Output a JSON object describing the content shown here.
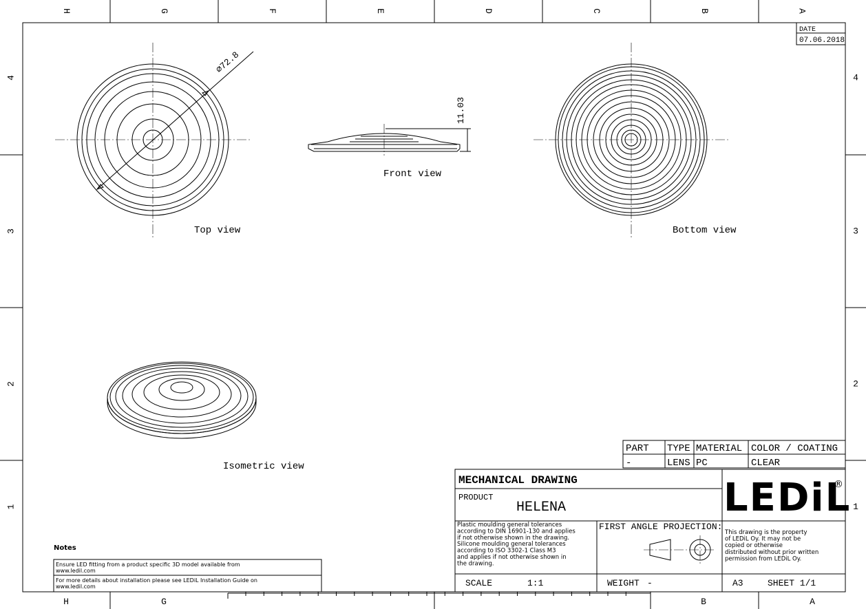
{
  "border": {
    "columns_top": [
      "H",
      "G",
      "F",
      "E",
      "D",
      "C",
      "B",
      "A"
    ],
    "columns_bottom": [
      "H",
      "G",
      "B",
      "A"
    ],
    "rows": [
      "4",
      "3",
      "2",
      "1"
    ]
  },
  "views": {
    "top": {
      "label": "Top view",
      "dimension": "⌀72.8"
    },
    "front": {
      "label": "Front view",
      "dimension": "11.03"
    },
    "bottom": {
      "label": "Bottom view"
    },
    "isometric": {
      "label": "Isometric view"
    }
  },
  "date": {
    "label": "DATE",
    "value": "07.06.2018"
  },
  "parts_table": {
    "headers": [
      "PART",
      "TYPE",
      "MATERIAL",
      "COLOR / COATING"
    ],
    "row": [
      "-",
      "LENS",
      "PC",
      "CLEAR"
    ]
  },
  "title_block": {
    "title": "MECHANICAL DRAWING",
    "product_label": "PRODUCT",
    "product": "HELENA",
    "tolerances": [
      "Plastic moulding general tolerances",
      "according to DIN 16901-130 and applies",
      "if not otherwise shown in the drawing.",
      "Silicone moulding general tolerances",
      "according to ISO 3302-1 Class M3",
      "and applies if not otherwise shown in",
      "the drawing."
    ],
    "projection": "FIRST ANGLE PROJECTION:",
    "logo": "LEDiL",
    "logo_mark": "®",
    "property": [
      "This drawing is the property",
      "of LEDiL Oy. It may not be",
      "copied or otherwise",
      "distributed without prior written",
      "permission from LEDiL Oy."
    ],
    "scale_label": "SCALE",
    "scale": "1:1",
    "weight_label": "WEIGHT",
    "weight": "-",
    "format": "A3",
    "sheet": "SHEET 1/1"
  },
  "notes": {
    "title": "Notes",
    "items": [
      [
        "Ensure LED fitting from a product specific 3D model available from",
        "www.ledil.com"
      ],
      [
        "For more details about installation please see LEDiL Installation Guide on",
        "www.ledil.com"
      ]
    ]
  }
}
